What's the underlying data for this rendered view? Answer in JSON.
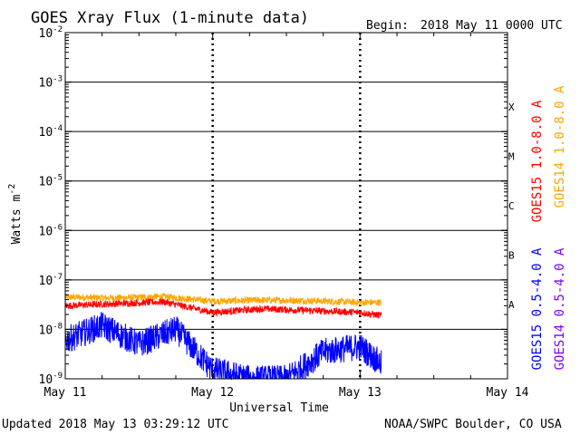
{
  "chart_data": {
    "type": "line",
    "title": "GOES Xray Flux (1-minute data)",
    "begin_label": "Begin:",
    "begin_date": "2018 May 11 0000 UTC",
    "ylabel": "Watts m",
    "ylabel_exponent": "-2",
    "xlabel": "Universal Time",
    "yscale": "log",
    "ylim": [
      1e-09,
      0.01
    ],
    "xlim": [
      "2018-05-11 00:00",
      "2018-05-14 00:00"
    ],
    "x_tick_labels": [
      "May 11",
      "May 12",
      "May 13",
      "May 14"
    ],
    "y_tick_labels": [
      {
        "base": "10",
        "exp": "-9"
      },
      {
        "base": "10",
        "exp": "-8"
      },
      {
        "base": "10",
        "exp": "-7"
      },
      {
        "base": "10",
        "exp": "-6"
      },
      {
        "base": "10",
        "exp": "-5"
      },
      {
        "base": "10",
        "exp": "-4"
      },
      {
        "base": "10",
        "exp": "-3"
      },
      {
        "base": "10",
        "exp": "-2"
      }
    ],
    "flare_classes": [
      "A",
      "B",
      "C",
      "M",
      "X"
    ],
    "series": [
      {
        "name": "GOES15 1.0-8.0 A",
        "color": "#ff0000",
        "band": "long",
        "times": [
          "2018-05-11 00:00",
          "2018-05-11 08:00",
          "2018-05-11 16:00",
          "2018-05-12 00:00",
          "2018-05-12 08:00",
          "2018-05-12 16:00",
          "2018-05-13 00:00",
          "2018-05-13 03:29"
        ],
        "values": [
          3e-08,
          3.3e-08,
          3.6e-08,
          2.2e-08,
          2.6e-08,
          2.4e-08,
          2.2e-08,
          1.9e-08
        ]
      },
      {
        "name": "GOES14 1.0-8.0 A",
        "color": "#ffa500",
        "band": "long",
        "times": [
          "2018-05-11 00:00",
          "2018-05-11 08:00",
          "2018-05-11 16:00",
          "2018-05-12 00:00",
          "2018-05-12 08:00",
          "2018-05-12 16:00",
          "2018-05-13 00:00",
          "2018-05-13 03:29"
        ],
        "values": [
          4.5e-08,
          4.3e-08,
          4.6e-08,
          3.7e-08,
          3.9e-08,
          3.8e-08,
          3.5e-08,
          3.5e-08
        ]
      },
      {
        "name": "GOES15 0.5-4.0 A",
        "color": "#0000ff",
        "band": "short",
        "times": [
          "2018-05-11 00:00",
          "2018-05-11 06:00",
          "2018-05-11 12:00",
          "2018-05-11 18:00",
          "2018-05-12 00:00",
          "2018-05-12 06:00",
          "2018-05-12 12:00",
          "2018-05-12 18:00",
          "2018-05-13 00:00",
          "2018-05-13 03:29"
        ],
        "values": [
          6e-09,
          1.2e-08,
          5e-09,
          1e-08,
          1.5e-09,
          1e-09,
          1e-09,
          3.5e-09,
          4.5e-09,
          2e-09
        ]
      },
      {
        "name": "GOES14 0.5-4.0 A",
        "color": "#7f00ff",
        "band": "short",
        "times": [],
        "values": []
      }
    ],
    "colors": {
      "axes": "#000000",
      "grid": "#000000"
    }
  },
  "footer": {
    "updated": "Updated 2018 May 13 03:29:12 UTC",
    "credit": "NOAA/SWPC Boulder, CO USA"
  }
}
